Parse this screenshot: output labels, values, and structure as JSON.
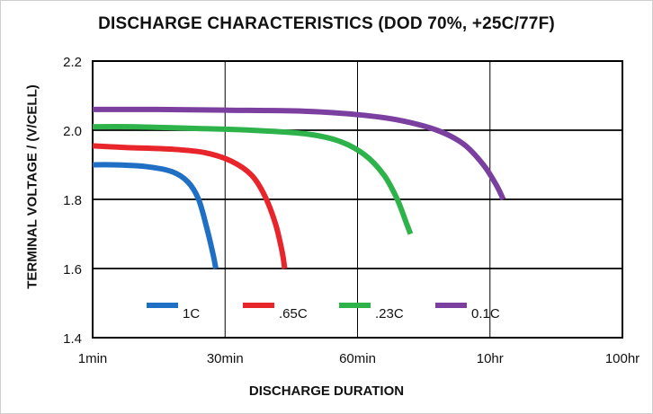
{
  "chart_data": {
    "type": "line",
    "title": "DISCHARGE CHARACTERISTICS (DOD 70%, +25C/77F)",
    "xlabel": "DISCHARGE DURATION",
    "ylabel": "TERMINAL VOLTAGE / (V/CELL)",
    "x_ticks": [
      "1min",
      "30min",
      "60min",
      "10hr",
      "100hr"
    ],
    "y_ticks": [
      2.2,
      2.0,
      1.8,
      1.6,
      1.4
    ],
    "ylim": [
      1.4,
      2.2
    ],
    "grid": true,
    "legend_position": "bottom-inside",
    "series": [
      {
        "name": "1C",
        "color": "#1f6fc5",
        "points": [
          [
            0.0,
            1.9
          ],
          [
            0.15,
            1.9
          ],
          [
            0.4,
            1.895
          ],
          [
            0.6,
            1.88
          ],
          [
            0.72,
            1.85
          ],
          [
            0.8,
            1.8
          ],
          [
            0.86,
            1.72
          ],
          [
            0.91,
            1.64
          ],
          [
            0.93,
            1.6
          ]
        ]
      },
      {
        "name": ".65C",
        "color": "#e8252b",
        "points": [
          [
            0.0,
            1.955
          ],
          [
            0.25,
            1.95
          ],
          [
            0.6,
            1.945
          ],
          [
            0.85,
            1.935
          ],
          [
            1.05,
            1.91
          ],
          [
            1.2,
            1.87
          ],
          [
            1.3,
            1.81
          ],
          [
            1.38,
            1.73
          ],
          [
            1.43,
            1.65
          ],
          [
            1.45,
            1.6
          ]
        ]
      },
      {
        "name": ".23C",
        "color": "#2db34a",
        "points": [
          [
            0.0,
            2.01
          ],
          [
            0.3,
            2.01
          ],
          [
            0.8,
            2.005
          ],
          [
            1.2,
            2.0
          ],
          [
            1.6,
            1.99
          ],
          [
            1.85,
            1.97
          ],
          [
            2.05,
            1.93
          ],
          [
            2.2,
            1.87
          ],
          [
            2.3,
            1.8
          ],
          [
            2.37,
            1.73
          ],
          [
            2.4,
            1.7
          ]
        ]
      },
      {
        "name": "0.1C",
        "color": "#7b3fa0",
        "points": [
          [
            0.0,
            2.06
          ],
          [
            0.5,
            2.06
          ],
          [
            1.0,
            2.058
          ],
          [
            1.6,
            2.055
          ],
          [
            2.0,
            2.045
          ],
          [
            2.3,
            2.03
          ],
          [
            2.6,
            2.0
          ],
          [
            2.8,
            1.96
          ],
          [
            2.95,
            1.9
          ],
          [
            3.05,
            1.84
          ],
          [
            3.1,
            1.8
          ]
        ]
      }
    ]
  }
}
